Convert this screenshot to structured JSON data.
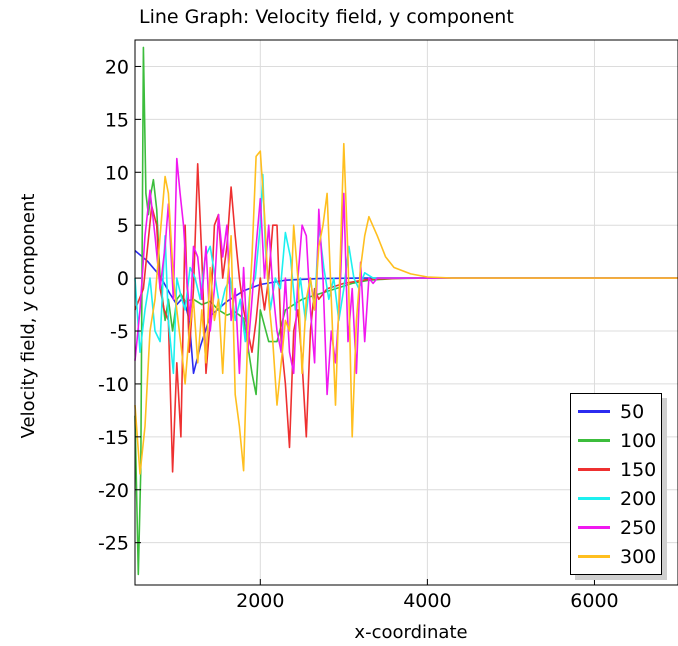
{
  "chart_data": {
    "type": "line",
    "title": "Line Graph: Velocity field, y component",
    "xlabel": "x-coordinate",
    "ylabel": "Velocity field, y component",
    "xlim": [
      500,
      7000
    ],
    "ylim": [
      -29,
      22.5
    ],
    "x_ticks": [
      2000,
      4000,
      6000
    ],
    "y_ticks": [
      20,
      15,
      10,
      5,
      0,
      -5,
      -10,
      -15,
      -20,
      -25
    ],
    "grid": true,
    "legend_position": "bottom-right",
    "series": [
      {
        "name": "50",
        "color": "#2b2bf0",
        "points": [
          [
            500,
            2.6
          ],
          [
            650,
            1.6
          ],
          [
            800,
            0.2
          ],
          [
            920,
            -1.5
          ],
          [
            1000,
            -2.5
          ],
          [
            1080,
            -1.8
          ],
          [
            1150,
            -4.0
          ],
          [
            1200,
            -9.0
          ],
          [
            1280,
            -6.5
          ],
          [
            1400,
            -3.6
          ],
          [
            1600,
            -2.2
          ],
          [
            1800,
            -1.2
          ],
          [
            2000,
            -0.6
          ],
          [
            2300,
            -0.2
          ],
          [
            2700,
            -0.05
          ],
          [
            3200,
            0
          ],
          [
            7000,
            0
          ]
        ]
      },
      {
        "name": "100",
        "color": "#3cbd3c",
        "points": [
          [
            500,
            -13
          ],
          [
            540,
            -28
          ],
          [
            570,
            -18
          ],
          [
            600,
            21.8
          ],
          [
            630,
            8
          ],
          [
            660,
            6
          ],
          [
            690,
            8
          ],
          [
            720,
            9.3
          ],
          [
            760,
            6.5
          ],
          [
            800,
            0
          ],
          [
            860,
            -4
          ],
          [
            900,
            -2
          ],
          [
            950,
            -5
          ],
          [
            1000,
            -2
          ],
          [
            1050,
            -1.5
          ],
          [
            1100,
            -2.2
          ],
          [
            1200,
            -2.0
          ],
          [
            1300,
            -2.5
          ],
          [
            1400,
            -2.2
          ],
          [
            1500,
            -3.0
          ],
          [
            1600,
            -3.5
          ],
          [
            1700,
            -3.2
          ],
          [
            1800,
            -3.8
          ],
          [
            1900,
            -9
          ],
          [
            1950,
            -11
          ],
          [
            2000,
            -3
          ],
          [
            2100,
            -6
          ],
          [
            2200,
            -6
          ],
          [
            2300,
            -3
          ],
          [
            2500,
            -2
          ],
          [
            2700,
            -1.5
          ],
          [
            2900,
            -1.0
          ],
          [
            3100,
            -0.5
          ],
          [
            3300,
            -0.2
          ],
          [
            3600,
            -0.05
          ],
          [
            4000,
            0
          ],
          [
            7000,
            0
          ]
        ]
      },
      {
        "name": "150",
        "color": "#ee3030",
        "points": [
          [
            500,
            -3
          ],
          [
            600,
            -1
          ],
          [
            700,
            6.8
          ],
          [
            760,
            5
          ],
          [
            800,
            -1
          ],
          [
            850,
            -3
          ],
          [
            900,
            -4
          ],
          [
            950,
            -18.3
          ],
          [
            1000,
            -8
          ],
          [
            1050,
            -15
          ],
          [
            1100,
            5
          ],
          [
            1150,
            -7
          ],
          [
            1200,
            -1
          ],
          [
            1250,
            10.8
          ],
          [
            1300,
            2
          ],
          [
            1350,
            -9
          ],
          [
            1400,
            -4
          ],
          [
            1450,
            5
          ],
          [
            1500,
            6
          ],
          [
            1550,
            0
          ],
          [
            1600,
            3
          ],
          [
            1650,
            8.6
          ],
          [
            1700,
            4
          ],
          [
            1750,
            0
          ],
          [
            1800,
            -3
          ],
          [
            1850,
            -5
          ],
          [
            1900,
            -7
          ],
          [
            1950,
            -4
          ],
          [
            2000,
            0
          ],
          [
            2050,
            -3
          ],
          [
            2100,
            0
          ],
          [
            2150,
            5
          ],
          [
            2200,
            5
          ],
          [
            2250,
            -6
          ],
          [
            2300,
            -10
          ],
          [
            2350,
            -16
          ],
          [
            2400,
            -5
          ],
          [
            2450,
            -3
          ],
          [
            2500,
            -8
          ],
          [
            2550,
            -15
          ],
          [
            2600,
            -5
          ],
          [
            2650,
            -1
          ],
          [
            2700,
            -2
          ],
          [
            2800,
            -1
          ],
          [
            3000,
            -0.5
          ],
          [
            3300,
            -0.1
          ],
          [
            3800,
            0
          ],
          [
            7000,
            0
          ]
        ]
      },
      {
        "name": "200",
        "color": "#1cf0f0",
        "points": [
          [
            500,
            0
          ],
          [
            560,
            -7
          ],
          [
            620,
            -3
          ],
          [
            680,
            0
          ],
          [
            740,
            -5
          ],
          [
            800,
            -6
          ],
          [
            860,
            4
          ],
          [
            900,
            -4
          ],
          [
            960,
            -9
          ],
          [
            1000,
            0
          ],
          [
            1060,
            -2
          ],
          [
            1100,
            -3
          ],
          [
            1160,
            1
          ],
          [
            1220,
            0
          ],
          [
            1280,
            -2
          ],
          [
            1340,
            2
          ],
          [
            1400,
            3
          ],
          [
            1460,
            0
          ],
          [
            1520,
            -3
          ],
          [
            1580,
            -1
          ],
          [
            1640,
            0
          ],
          [
            1700,
            -4
          ],
          [
            1760,
            -2
          ],
          [
            1820,
            -6
          ],
          [
            1880,
            -1
          ],
          [
            1940,
            0
          ],
          [
            2000,
            5
          ],
          [
            2030,
            9.8
          ],
          [
            2060,
            3
          ],
          [
            2120,
            -3
          ],
          [
            2180,
            0
          ],
          [
            2240,
            -1
          ],
          [
            2300,
            4.3
          ],
          [
            2360,
            2
          ],
          [
            2420,
            -3
          ],
          [
            2480,
            0
          ],
          [
            2540,
            -4
          ],
          [
            2600,
            0
          ],
          [
            2650,
            -3
          ],
          [
            2700,
            5
          ],
          [
            2760,
            1
          ],
          [
            2820,
            -2
          ],
          [
            2880,
            0
          ],
          [
            2940,
            -4
          ],
          [
            3000,
            -1
          ],
          [
            3060,
            3
          ],
          [
            3120,
            0
          ],
          [
            3180,
            -1
          ],
          [
            3250,
            0.5
          ],
          [
            3350,
            0
          ],
          [
            7000,
            0
          ]
        ]
      },
      {
        "name": "250",
        "color": "#f018f0",
        "points": [
          [
            500,
            -7.8
          ],
          [
            560,
            -3
          ],
          [
            620,
            4
          ],
          [
            680,
            8.3
          ],
          [
            740,
            4
          ],
          [
            800,
            -1
          ],
          [
            860,
            3
          ],
          [
            900,
            7.0
          ],
          [
            960,
            -2
          ],
          [
            1000,
            11.3
          ],
          [
            1040,
            8
          ],
          [
            1080,
            5
          ],
          [
            1120,
            0
          ],
          [
            1160,
            -4
          ],
          [
            1200,
            3
          ],
          [
            1250,
            2
          ],
          [
            1300,
            -2
          ],
          [
            1350,
            3
          ],
          [
            1400,
            -5
          ],
          [
            1450,
            -1
          ],
          [
            1500,
            6
          ],
          [
            1550,
            2
          ],
          [
            1600,
            5
          ],
          [
            1650,
            -4
          ],
          [
            1700,
            -1
          ],
          [
            1750,
            -9
          ],
          [
            1800,
            1
          ],
          [
            1850,
            -7
          ],
          [
            1900,
            -2
          ],
          [
            1950,
            3
          ],
          [
            2000,
            7.5
          ],
          [
            2050,
            0
          ],
          [
            2100,
            5
          ],
          [
            2150,
            -1
          ],
          [
            2200,
            -5
          ],
          [
            2250,
            -7
          ],
          [
            2300,
            0
          ],
          [
            2350,
            -7
          ],
          [
            2400,
            -9
          ],
          [
            2450,
            0
          ],
          [
            2500,
            5
          ],
          [
            2550,
            4
          ],
          [
            2600,
            -3
          ],
          [
            2650,
            -8
          ],
          [
            2700,
            6.5
          ],
          [
            2750,
            0
          ],
          [
            2800,
            -11
          ],
          [
            2850,
            -5
          ],
          [
            2900,
            -8
          ],
          [
            2950,
            -2
          ],
          [
            3000,
            8
          ],
          [
            3050,
            -6
          ],
          [
            3100,
            -1
          ],
          [
            3150,
            -9
          ],
          [
            3200,
            1.5
          ],
          [
            3250,
            -6
          ],
          [
            3300,
            0
          ],
          [
            3350,
            -0.5
          ],
          [
            3400,
            0
          ],
          [
            7000,
            0
          ]
        ]
      },
      {
        "name": "300",
        "color": "#ffbf1f",
        "points": [
          [
            500,
            -12
          ],
          [
            560,
            -18.5
          ],
          [
            620,
            -14
          ],
          [
            680,
            -5
          ],
          [
            740,
            -2
          ],
          [
            800,
            4
          ],
          [
            860,
            9.6
          ],
          [
            900,
            8
          ],
          [
            960,
            0
          ],
          [
            1000,
            -3
          ],
          [
            1060,
            -7
          ],
          [
            1100,
            -10
          ],
          [
            1150,
            -5
          ],
          [
            1200,
            -2
          ],
          [
            1250,
            -8
          ],
          [
            1300,
            -3
          ],
          [
            1350,
            -8
          ],
          [
            1400,
            1
          ],
          [
            1450,
            -4
          ],
          [
            1500,
            -2
          ],
          [
            1550,
            -9
          ],
          [
            1600,
            -1
          ],
          [
            1650,
            4
          ],
          [
            1700,
            -11
          ],
          [
            1750,
            -14
          ],
          [
            1800,
            -18.2
          ],
          [
            1850,
            -5
          ],
          [
            1900,
            2
          ],
          [
            1950,
            11.5
          ],
          [
            2000,
            12
          ],
          [
            2050,
            6
          ],
          [
            2100,
            -2
          ],
          [
            2150,
            -6
          ],
          [
            2200,
            -12
          ],
          [
            2250,
            -8
          ],
          [
            2300,
            -4
          ],
          [
            2350,
            -5
          ],
          [
            2400,
            5
          ],
          [
            2450,
            0
          ],
          [
            2500,
            -9
          ],
          [
            2550,
            -2
          ],
          [
            2600,
            0
          ],
          [
            2650,
            -3
          ],
          [
            2700,
            3
          ],
          [
            2750,
            5
          ],
          [
            2800,
            8
          ],
          [
            2850,
            -2
          ],
          [
            2900,
            -12
          ],
          [
            2950,
            0
          ],
          [
            3000,
            12.7
          ],
          [
            3050,
            2
          ],
          [
            3100,
            -15
          ],
          [
            3150,
            -4
          ],
          [
            3200,
            1
          ],
          [
            3250,
            4
          ],
          [
            3300,
            5.8
          ],
          [
            3400,
            4
          ],
          [
            3500,
            2
          ],
          [
            3600,
            1
          ],
          [
            3800,
            0.4
          ],
          [
            4000,
            0.1
          ],
          [
            4300,
            0
          ],
          [
            7000,
            0
          ]
        ]
      }
    ]
  }
}
